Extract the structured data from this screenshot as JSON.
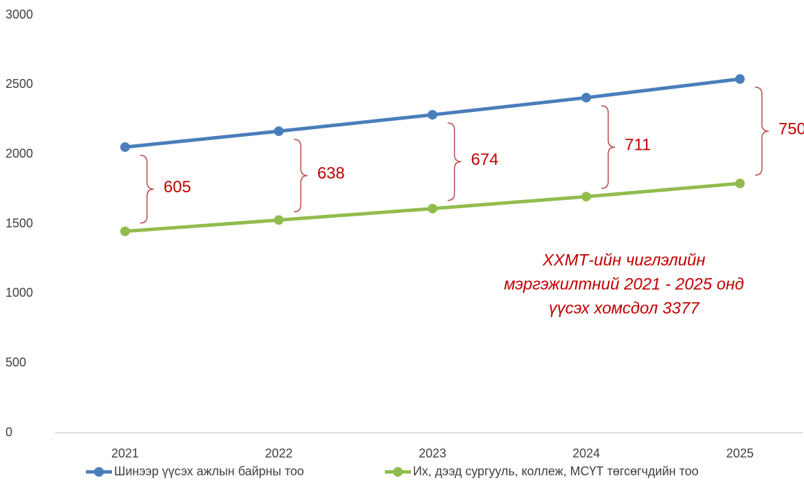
{
  "chart_data": {
    "type": "line",
    "categories": [
      "2021",
      "2022",
      "2023",
      "2024",
      "2025"
    ],
    "series": [
      {
        "name": "Шинээр үүсэх ажлын байрны тоо",
        "color": "#4a7ebb",
        "values": [
          2052,
          2166,
          2284,
          2407,
          2541
        ]
      },
      {
        "name": "Их, дээд сургууль, коллеж, МСҮТ төгсөгчдийн тоо",
        "color": "#92bc4d",
        "values": [
          1447,
          1528,
          1610,
          1696,
          1791
        ]
      }
    ],
    "ylim": [
      0,
      3000
    ],
    "yticks": [
      0,
      500,
      1000,
      1500,
      2000,
      2500,
      3000
    ],
    "grid": false,
    "legend": "bottom",
    "gap_labels": [
      605,
      638,
      674,
      711,
      750
    ],
    "annotation": [
      "ХХМТ-ийн чиглэлийн",
      "мэргэжилтний 2021 - 2025 онд",
      "үүсэх хомсдол 3377"
    ]
  }
}
